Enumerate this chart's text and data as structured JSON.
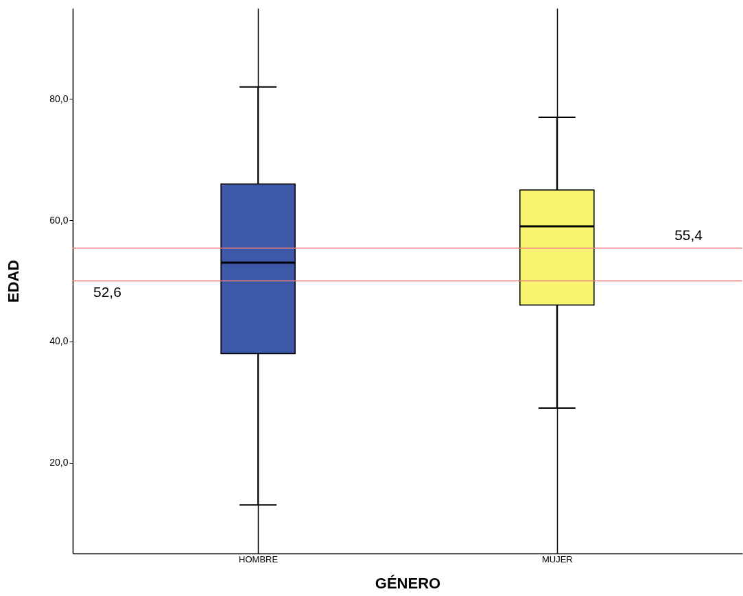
{
  "chart_data": {
    "type": "box",
    "xlabel": "GÉNERO",
    "ylabel": "EDAD",
    "categories": [
      "HOMBRE",
      "MUJER"
    ],
    "series": [
      {
        "color": "#3e58a8",
        "boxes": [
          {
            "low": 13,
            "q1": 38,
            "median": 53,
            "q3": 66,
            "high": 82
          },
          null
        ]
      },
      {
        "color": "#f8f46f",
        "boxes": [
          null,
          {
            "low": 29,
            "q1": 46,
            "median": 59,
            "q3": 65,
            "high": 77
          }
        ]
      }
    ],
    "ylim": [
      5,
      95
    ],
    "yticks": [
      {
        "value": 20,
        "label": "20,0"
      },
      {
        "value": 40,
        "label": "40,0"
      },
      {
        "value": 60,
        "label": "60,0"
      },
      {
        "value": 80,
        "label": "80,0"
      }
    ],
    "ref_lines": [
      {
        "axis": "y",
        "value": 50,
        "color": "#f08080"
      },
      {
        "axis": "y",
        "value": 55.4,
        "label": "55,4",
        "color": "#f08080"
      }
    ],
    "annotations": [
      {
        "text": "52,6",
        "y": 50
      }
    ],
    "grid": "x"
  }
}
